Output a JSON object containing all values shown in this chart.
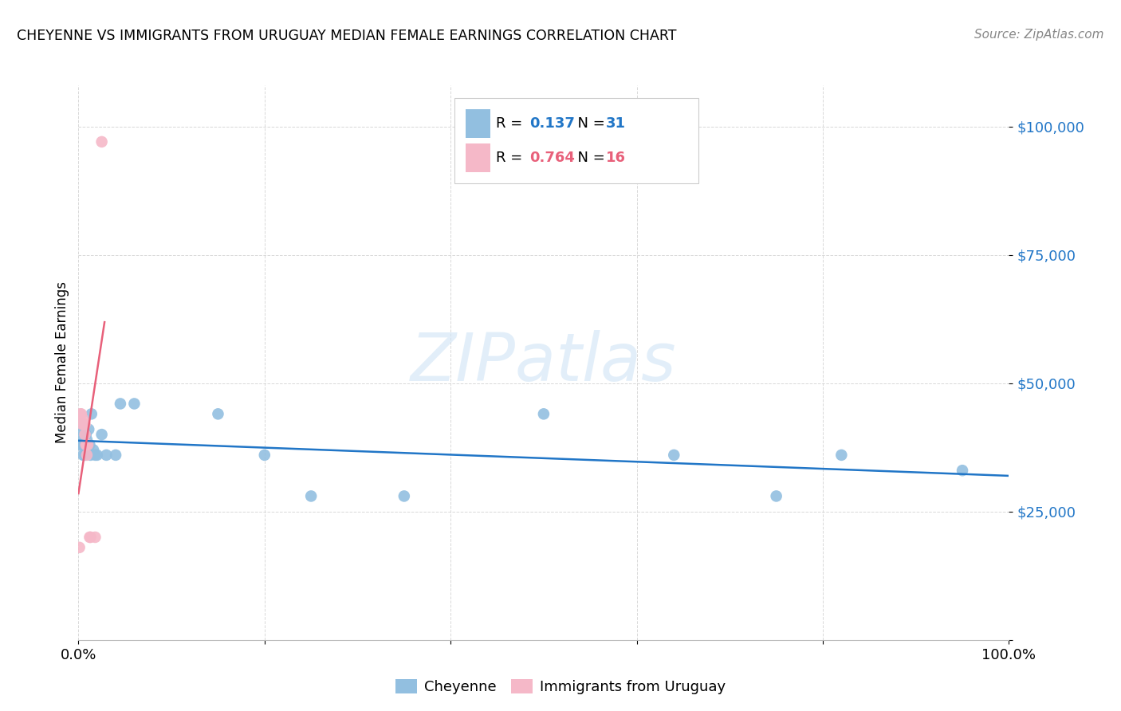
{
  "title": "CHEYENNE VS IMMIGRANTS FROM URUGUAY MEDIAN FEMALE EARNINGS CORRELATION CHART",
  "source": "Source: ZipAtlas.com",
  "ylabel": "Median Female Earnings",
  "legend_blue_r": "0.137",
  "legend_blue_n": "31",
  "legend_pink_r": "0.764",
  "legend_pink_n": "16",
  "legend_blue_label": "Cheyenne",
  "legend_pink_label": "Immigrants from Uruguay",
  "blue_color": "#92bfe0",
  "pink_color": "#f5b8c8",
  "blue_line_color": "#2176c7",
  "pink_line_color": "#e8607a",
  "watermark_color": "#d0e4f5",
  "blue_x": [
    0.001,
    0.002,
    0.003,
    0.004,
    0.005,
    0.006,
    0.007,
    0.008,
    0.009,
    0.01,
    0.011,
    0.012,
    0.013,
    0.014,
    0.016,
    0.018,
    0.02,
    0.025,
    0.03,
    0.04,
    0.045,
    0.06,
    0.15,
    0.2,
    0.25,
    0.35,
    0.5,
    0.64,
    0.75,
    0.82,
    0.95
  ],
  "blue_y": [
    38000,
    42000,
    40000,
    38000,
    36000,
    38000,
    36000,
    40000,
    39000,
    37000,
    41000,
    38000,
    36000,
    44000,
    37000,
    36000,
    36000,
    40000,
    36000,
    36000,
    46000,
    46000,
    44000,
    36000,
    28000,
    28000,
    44000,
    36000,
    28000,
    36000,
    33000
  ],
  "pink_x": [
    0.001,
    0.002,
    0.003,
    0.004,
    0.005,
    0.006,
    0.007,
    0.007,
    0.008,
    0.009,
    0.009,
    0.01,
    0.012,
    0.013,
    0.018,
    0.025
  ],
  "pink_y": [
    18000,
    44000,
    44000,
    42000,
    43000,
    42000,
    42000,
    40000,
    38000,
    36000,
    38000,
    38000,
    20000,
    20000,
    20000,
    97000
  ],
  "xlim": [
    0,
    1.0
  ],
  "ylim": [
    0,
    108000
  ],
  "ytick_positions": [
    0,
    25000,
    50000,
    75000,
    100000
  ],
  "ytick_labels": [
    "",
    "$25,000",
    "$50,000",
    "$75,000",
    "$100,000"
  ],
  "xtick_positions": [
    0.0,
    0.2,
    0.4,
    0.6,
    0.8,
    1.0
  ],
  "xtick_labels": [
    "0.0%",
    "",
    "",
    "",
    "",
    "100.0%"
  ],
  "background_color": "#ffffff",
  "grid_color": "#d8d8d8"
}
